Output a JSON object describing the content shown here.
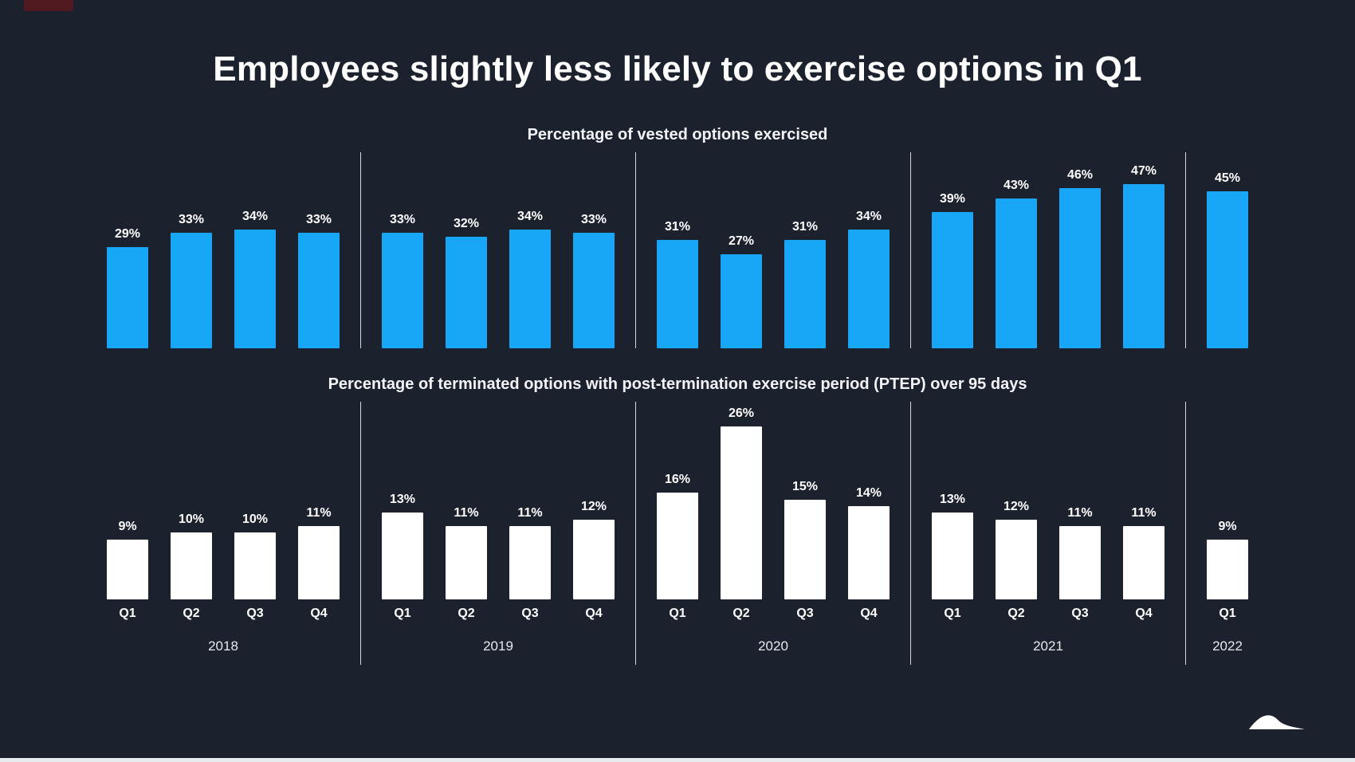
{
  "page": {
    "title": "Employees slightly less likely to exercise options in Q1",
    "background": "#1b212d"
  },
  "colors": {
    "bar_blue": "#18a6f6",
    "bar_white": "#ffffff",
    "divider": "#ebeff4"
  },
  "chart_data": [
    {
      "id": "vested",
      "type": "bar",
      "title": "Percentage of vested options exercised",
      "unit": "%",
      "bar_color": "#18a6f6",
      "ylim": [
        0,
        50
      ],
      "grid": false,
      "legend": "none",
      "show_category_labels": false,
      "show_year_labels": false,
      "groups": [
        {
          "year": "2018",
          "categories": [
            "Q1",
            "Q2",
            "Q3",
            "Q4"
          ],
          "values": [
            29,
            33,
            34,
            33
          ]
        },
        {
          "year": "2019",
          "categories": [
            "Q1",
            "Q2",
            "Q3",
            "Q4"
          ],
          "values": [
            33,
            32,
            34,
            33
          ]
        },
        {
          "year": "2020",
          "categories": [
            "Q1",
            "Q2",
            "Q3",
            "Q4"
          ],
          "values": [
            31,
            27,
            31,
            34
          ]
        },
        {
          "year": "2021",
          "categories": [
            "Q1",
            "Q2",
            "Q3",
            "Q4"
          ],
          "values": [
            39,
            43,
            46,
            47
          ]
        },
        {
          "year": "2022",
          "categories": [
            "Q1"
          ],
          "values": [
            45
          ]
        }
      ]
    },
    {
      "id": "ptep",
      "type": "bar",
      "title": "Percentage of terminated options with post-termination exercise period (PTEP) over 95 days",
      "unit": "%",
      "bar_color": "#ffffff",
      "ylim": [
        0,
        28
      ],
      "grid": false,
      "legend": "none",
      "show_category_labels": true,
      "show_year_labels": true,
      "groups": [
        {
          "year": "2018",
          "categories": [
            "Q1",
            "Q2",
            "Q3",
            "Q4"
          ],
          "values": [
            9,
            10,
            10,
            11
          ]
        },
        {
          "year": "2019",
          "categories": [
            "Q1",
            "Q2",
            "Q3",
            "Q4"
          ],
          "values": [
            13,
            11,
            11,
            12
          ]
        },
        {
          "year": "2020",
          "categories": [
            "Q1",
            "Q2",
            "Q3",
            "Q4"
          ],
          "values": [
            16,
            26,
            15,
            14
          ]
        },
        {
          "year": "2021",
          "categories": [
            "Q1",
            "Q2",
            "Q3",
            "Q4"
          ],
          "values": [
            13,
            12,
            11,
            11
          ]
        },
        {
          "year": "2022",
          "categories": [
            "Q1"
          ],
          "values": [
            9
          ]
        }
      ]
    }
  ],
  "footer": {
    "logo_icon": "wave-logo"
  }
}
